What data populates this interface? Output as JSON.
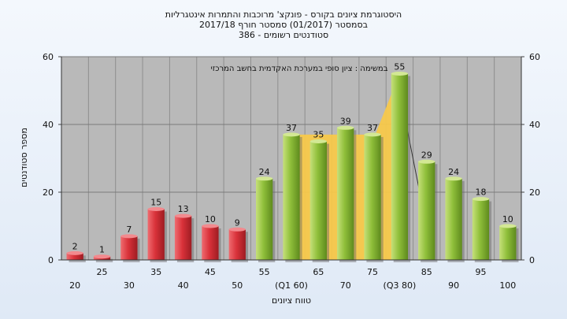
{
  "chart_data": {
    "type": "bar",
    "title_lines": [
      "היסטוגרמת ציונים בקורס - פונקצ' מרוכבות והתמרות אינטגרליות",
      "בסמסטר   (01/2017)  סמסטר חורף  2017/18",
      "סטודנטים רשומים - 386"
    ],
    "ylabel": "מספר סטודנטים",
    "xlabel": "טווח ציונים",
    "annotation": "במשימה : ציון סופי במערכת האקדמית בחשב המרכזי",
    "ylim": [
      0,
      60
    ],
    "yticks": [
      0,
      20,
      40,
      60
    ],
    "grid": true,
    "categories": [
      "20",
      "25",
      "30",
      "35",
      "40",
      "45",
      "50",
      "55",
      "(Q1 60)",
      "65",
      "70",
      "75",
      "(Q3 80)",
      "85",
      "90",
      "95",
      "100"
    ],
    "values": [
      2,
      1,
      7,
      15,
      13,
      10,
      9,
      24,
      37,
      35,
      39,
      37,
      55,
      29,
      24,
      18,
      10
    ],
    "bar_colors": {
      "failing": "#d9323a",
      "passing": "#8fbf3a"
    },
    "failing_categories": [
      "20",
      "25",
      "30",
      "35",
      "40",
      "45",
      "50"
    ],
    "highlight": {
      "from": "(Q1 60)",
      "to": "(Q3 80)",
      "color": "#f7c84a"
    }
  }
}
